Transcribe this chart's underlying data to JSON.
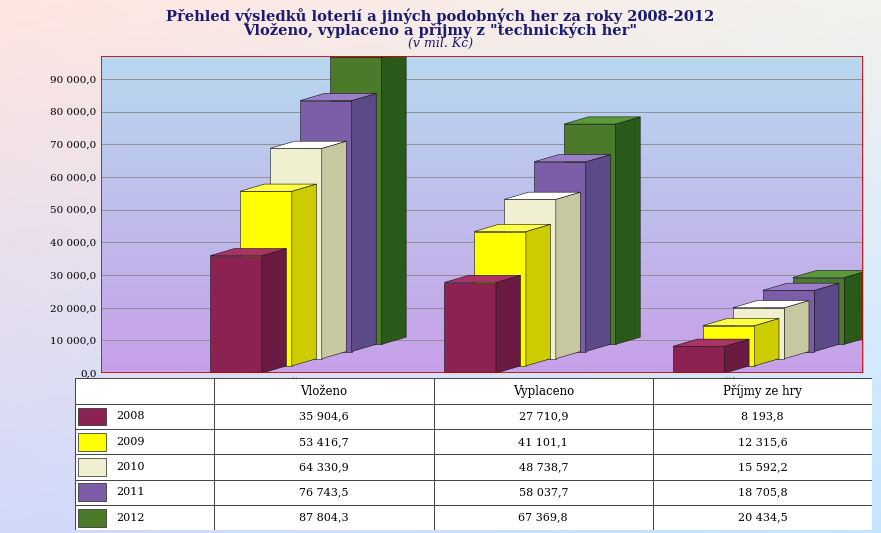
{
  "title1": "Přehled výsledků loterií a jiných podobných her za roky 2008-2012",
  "title2": "Vloženo, vyplaceno a příjmy z \"technických her\"",
  "title3": "(v mil. Kč)",
  "categories": [
    "Vloženo",
    "Vyplaceno",
    "Příjmy ze hry"
  ],
  "years": [
    "2008",
    "2009",
    "2010",
    "2011",
    "2012"
  ],
  "bar_colors": [
    "#8b2252",
    "#ffff00",
    "#f0f0d0",
    "#7b5ea7",
    "#4a7a2a"
  ],
  "bar_colors_top": [
    "#aa3366",
    "#ffff44",
    "#ffffff",
    "#9b7ec7",
    "#5a9a3a"
  ],
  "bar_colors_side": [
    "#6b1a42",
    "#cccc00",
    "#c8c8a0",
    "#5b4a87",
    "#2a5a1a"
  ],
  "data_vlozeno": [
    35904.6,
    53416.7,
    64330.9,
    76743.5,
    87804.3
  ],
  "data_vyplaceno": [
    27710.9,
    41101.1,
    48738.7,
    58037.7,
    67369.8
  ],
  "data_prijmy": [
    8193.8,
    12315.6,
    15592.2,
    18705.8,
    20434.5
  ],
  "table_data": [
    [
      "35 904,6",
      "27 710,9",
      "8 193,8"
    ],
    [
      "53 416,7",
      "41 101,1",
      "12 315,6"
    ],
    [
      "64 330,9",
      "48 738,7",
      "15 592,2"
    ],
    [
      "76 743,5",
      "58 037,7",
      "18 705,8"
    ],
    [
      "87 804,3",
      "67 369,8",
      "20 434,5"
    ]
  ],
  "ylim_max": 97000,
  "yticks": [
    0,
    10000,
    20000,
    30000,
    40000,
    50000,
    60000,
    70000,
    80000,
    90000
  ],
  "ytick_labels": [
    "0,0",
    "10 000,0",
    "20 000,0",
    "30 000,0",
    "40 000,0",
    "50 000,0",
    "60 000,0",
    "70 000,0",
    "80 000,0",
    "90 000,0"
  ],
  "cat_labels": [
    "Vloženo",
    "Vyplaceno",
    "Příjmy ze hry"
  ],
  "table_col_headers": [
    "Vloženo",
    "Vyplaceno",
    "Příjmy ze hry"
  ]
}
